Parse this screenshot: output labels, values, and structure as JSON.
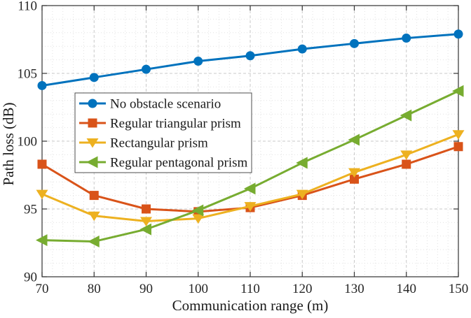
{
  "chart_data": {
    "type": "line",
    "title": "",
    "xlabel": "Communication range (m)",
    "ylabel": "Path loss (dB)",
    "xlim": [
      70,
      150
    ],
    "ylim": [
      90,
      110
    ],
    "x": [
      70,
      80,
      90,
      100,
      110,
      120,
      130,
      140,
      150
    ],
    "x_ticks": [
      70,
      80,
      90,
      100,
      110,
      120,
      130,
      140,
      150
    ],
    "x_tick_labels": [
      "70",
      "80",
      "90",
      "100",
      "110",
      "120",
      "130",
      "140",
      "150"
    ],
    "y_ticks": [
      90,
      95,
      100,
      105,
      110
    ],
    "y_tick_labels": [
      "90",
      "95",
      "100",
      "105",
      "110"
    ],
    "grid": "major and minor dotted grid on",
    "minor_x_step": 2,
    "minor_y_step": 1,
    "legend_position": "upper-left-inside",
    "series": [
      {
        "name": "No obstacle scenario",
        "color": "#0072BD",
        "marker": "circle",
        "values": [
          104.1,
          104.7,
          105.3,
          105.9,
          106.3,
          106.8,
          107.2,
          107.6,
          107.9
        ]
      },
      {
        "name": "Regular triangular prism",
        "color": "#D95319",
        "marker": "square",
        "values": [
          98.3,
          96.0,
          95.0,
          94.8,
          95.1,
          96.0,
          97.2,
          98.3,
          99.6
        ]
      },
      {
        "name": "Rectangular prism",
        "color": "#EDB120",
        "marker": "triangle-down",
        "values": [
          96.1,
          94.5,
          94.1,
          94.3,
          95.2,
          96.1,
          97.7,
          99.0,
          100.5
        ]
      },
      {
        "name": "Regular pentagonal prism",
        "color": "#77AC30",
        "marker": "triangle-left",
        "values": [
          92.7,
          92.6,
          93.5,
          94.9,
          96.5,
          98.4,
          100.1,
          101.9,
          103.7
        ]
      }
    ]
  },
  "colors": {
    "axis": "#333333",
    "tick_text": "#262626",
    "grid_major": "#c9c9c9",
    "grid_minor": "#e2e2e2",
    "legend_border": "#4d4d4d",
    "background": "#ffffff"
  }
}
